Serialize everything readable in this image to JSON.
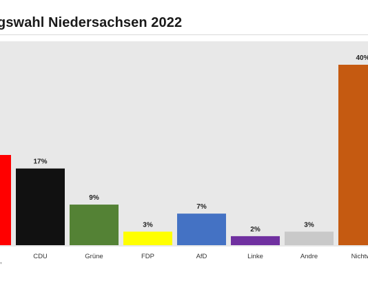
{
  "chart_data": {
    "type": "bar",
    "title": "gswahl Niedersachsen 2022",
    "categories": [
      "",
      "CDU",
      "Grüne",
      "FDP",
      "AfD",
      "Linke",
      "Andre",
      "Nichtwä"
    ],
    "values": [
      20,
      17,
      9,
      3,
      7,
      2,
      3,
      40
    ],
    "value_labels": [
      "",
      "17%",
      "9%",
      "3%",
      "7%",
      "2%",
      "3%",
      "40%"
    ],
    "colors": [
      "#ff0000",
      "#111111",
      "#548235",
      "#ffff00",
      "#4472c4",
      "#7030a0",
      "#c9c9c9",
      "#c55a11"
    ],
    "ylim": [
      0,
      40
    ],
    "xlabel": "",
    "ylabel": "",
    "grid": false,
    "legend": "none"
  },
  "footer": {
    "fragment": ","
  }
}
